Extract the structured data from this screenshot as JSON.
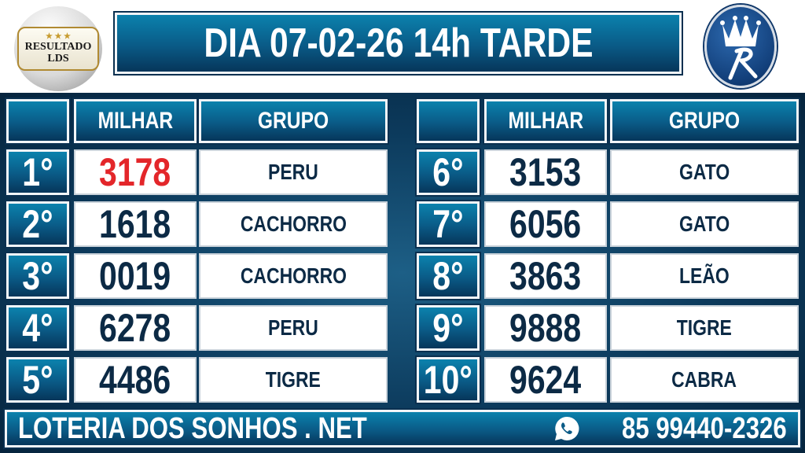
{
  "header": {
    "title": "DIA 07-02-26 14h TARDE"
  },
  "logo_left": {
    "text_line1": "RESULTADO",
    "text_line2": "LDS"
  },
  "logo_right": {
    "text": "Rei R"
  },
  "columns": {
    "rank": "",
    "milhar": "MILHAR",
    "grupo": "GRUPO"
  },
  "results": [
    {
      "rank": "1°",
      "milhar": "3178",
      "grupo": "PERU",
      "highlight": "#e3262a"
    },
    {
      "rank": "2°",
      "milhar": "1618",
      "grupo": "CACHORRO"
    },
    {
      "rank": "3°",
      "milhar": "0019",
      "grupo": "CACHORRO"
    },
    {
      "rank": "4°",
      "milhar": "6278",
      "grupo": "PERU"
    },
    {
      "rank": "5°",
      "milhar": "4486",
      "grupo": "TIGRE"
    },
    {
      "rank": "6°",
      "milhar": "3153",
      "grupo": "GATO"
    },
    {
      "rank": "7°",
      "milhar": "6056",
      "grupo": "GATO"
    },
    {
      "rank": "8°",
      "milhar": "3863",
      "grupo": "LEÃO"
    },
    {
      "rank": "9°",
      "milhar": "9888",
      "grupo": "TIGRE"
    },
    {
      "rank": "10°",
      "milhar": "9624",
      "grupo": "CABRA"
    }
  ],
  "footer": {
    "site": "LOTERIA DOS SONHOS . NET",
    "phone": "85 99440-2326",
    "phone_icon": "whatsapp-icon"
  },
  "colors": {
    "primary": "#0a5a86",
    "dark": "#06243d",
    "text": "#0c2a45",
    "highlight": "#e3262a"
  }
}
